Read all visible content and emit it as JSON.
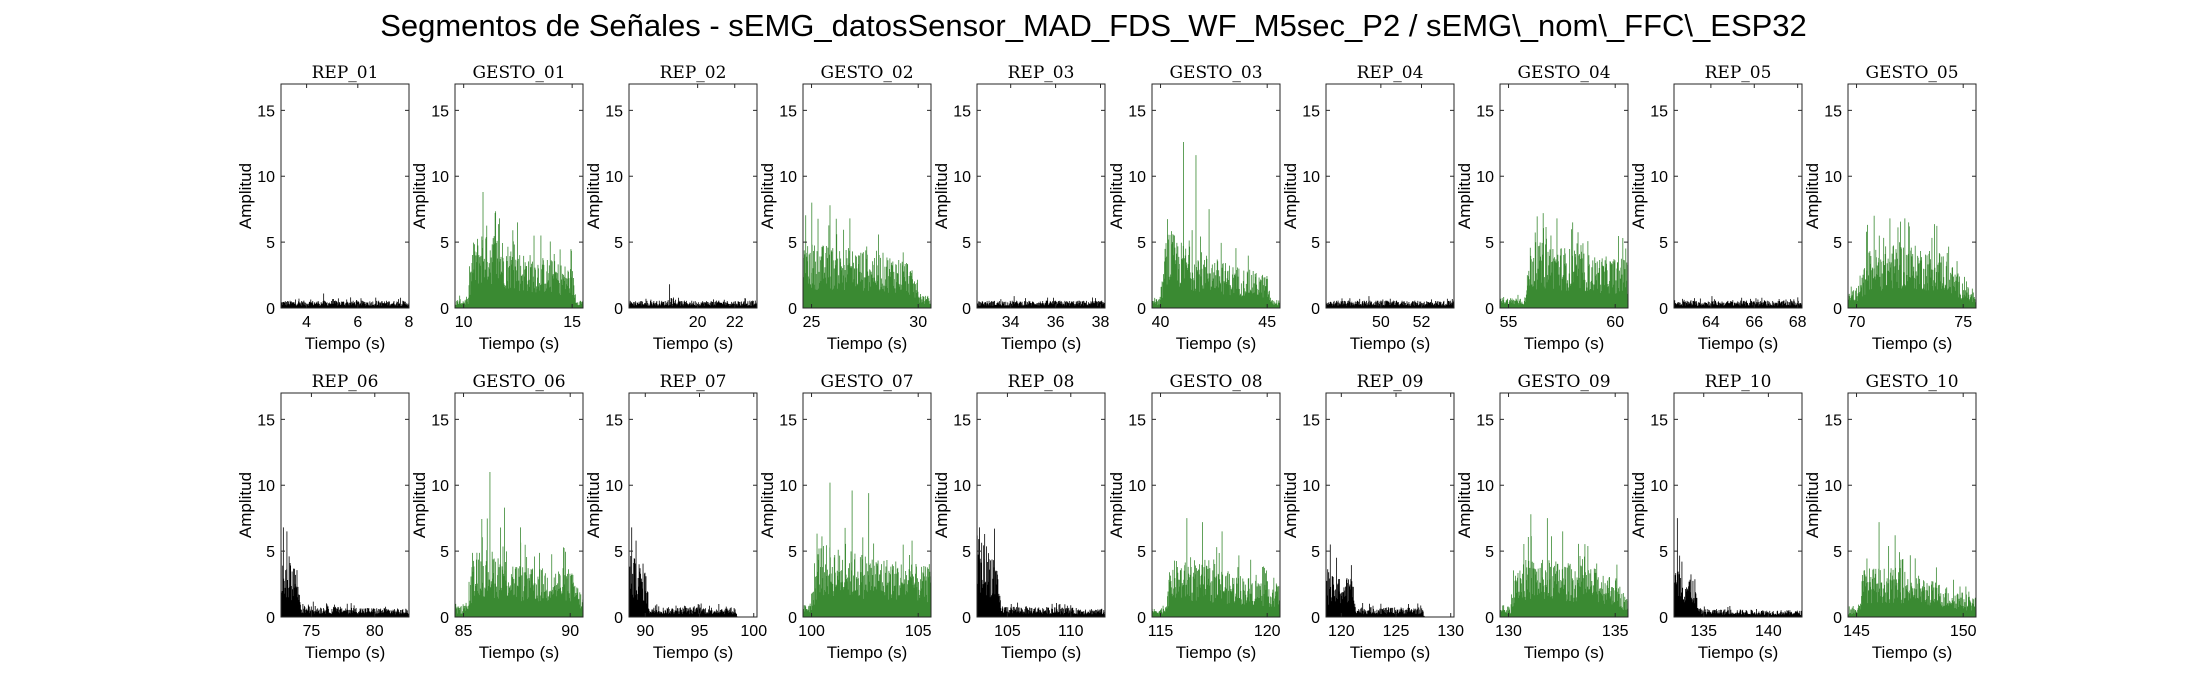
{
  "figure": {
    "title": "Segmentos de Señales - sEMG_datosSensor_MAD_FDS_WF_M5sec_P2 / sEMG\\_nom\\_FFC\\_ESP32"
  },
  "colors": {
    "rep": "#000000",
    "gesto": "#3a8a32"
  },
  "chart_data": [
    {
      "type": "bar",
      "title": "REP_01",
      "kind": "rep",
      "xlim": [
        3,
        8
      ],
      "ylim": [
        0,
        17
      ],
      "xticks": [
        4,
        6,
        8
      ],
      "yticks": [
        0,
        5,
        10,
        15
      ],
      "xlabel": "Tiempo (s)",
      "ylabel": "Amplitud",
      "profile": [
        [
          3,
          0.45
        ],
        [
          8,
          0.45
        ]
      ],
      "peaks": [
        1.1
      ]
    },
    {
      "type": "bar",
      "title": "GESTO_01",
      "kind": "gesto",
      "xlim": [
        9.6,
        15.5
      ],
      "ylim": [
        0,
        17
      ],
      "xticks": [
        10,
        15
      ],
      "yticks": [
        0,
        5,
        10,
        15
      ],
      "xlabel": "Tiempo (s)",
      "ylabel": "Amplitud",
      "profile": [
        [
          9.6,
          0.5
        ],
        [
          10.2,
          0.6
        ],
        [
          10.4,
          4.0
        ],
        [
          11,
          5.2
        ],
        [
          12.5,
          3.5
        ],
        [
          14,
          3.0
        ],
        [
          15,
          2.5
        ],
        [
          15.2,
          0.6
        ],
        [
          15.5,
          0.5
        ]
      ],
      "peaks": [
        8.8,
        6.8,
        6.5
      ]
    },
    {
      "type": "bar",
      "title": "REP_02",
      "kind": "rep",
      "xlim": [
        16.3,
        23.2
      ],
      "ylim": [
        0,
        17
      ],
      "xticks": [
        20,
        22
      ],
      "yticks": [
        0,
        5,
        10,
        15
      ],
      "xlabel": "Tiempo (s)",
      "ylabel": "Amplitud",
      "profile": [
        [
          16.3,
          0.45
        ],
        [
          23.2,
          0.45
        ]
      ],
      "peaks": [
        1.8
      ]
    },
    {
      "type": "bar",
      "title": "GESTO_02",
      "kind": "gesto",
      "xlim": [
        24.6,
        30.6
      ],
      "ylim": [
        0,
        17
      ],
      "xticks": [
        25,
        30
      ],
      "yticks": [
        0,
        5,
        10,
        15
      ],
      "xlabel": "Tiempo (s)",
      "ylabel": "Amplitud",
      "profile": [
        [
          24.6,
          4.0
        ],
        [
          26,
          3.8
        ],
        [
          28,
          3.5
        ],
        [
          29.5,
          3.0
        ],
        [
          30.1,
          1.0
        ],
        [
          30.6,
          0.5
        ]
      ],
      "peaks": [
        8.0,
        7.8,
        6.8
      ]
    },
    {
      "type": "bar",
      "title": "REP_03",
      "kind": "rep",
      "xlim": [
        32.5,
        38.2
      ],
      "ylim": [
        0,
        17
      ],
      "xticks": [
        34,
        36,
        38
      ],
      "yticks": [
        0,
        5,
        10,
        15
      ],
      "xlabel": "Tiempo (s)",
      "ylabel": "Amplitud",
      "profile": [
        [
          32.5,
          0.45
        ],
        [
          38.2,
          0.45
        ]
      ],
      "peaks": [
        0.9
      ]
    },
    {
      "type": "bar",
      "title": "GESTO_03",
      "kind": "gesto",
      "xlim": [
        39.6,
        45.6
      ],
      "ylim": [
        0,
        17
      ],
      "xticks": [
        40,
        45
      ],
      "yticks": [
        0,
        5,
        10,
        15
      ],
      "xlabel": "Tiempo (s)",
      "ylabel": "Amplitud",
      "profile": [
        [
          39.6,
          0.5
        ],
        [
          40.0,
          0.6
        ],
        [
          40.3,
          5.0
        ],
        [
          41,
          4.0
        ],
        [
          43,
          2.8
        ],
        [
          45,
          2.0
        ],
        [
          45.2,
          0.5
        ],
        [
          45.6,
          0.5
        ]
      ],
      "peaks": [
        12.6,
        11.6,
        7.5
      ]
    },
    {
      "type": "bar",
      "title": "REP_04",
      "kind": "rep",
      "xlim": [
        47.3,
        53.6
      ],
      "ylim": [
        0,
        17
      ],
      "xticks": [
        50,
        52
      ],
      "yticks": [
        0,
        5,
        10,
        15
      ],
      "xlabel": "Tiempo (s)",
      "ylabel": "Amplitud",
      "profile": [
        [
          47.3,
          0.45
        ],
        [
          53.6,
          0.45
        ]
      ],
      "peaks": [
        0.9
      ]
    },
    {
      "type": "bar",
      "title": "GESTO_04",
      "kind": "gesto",
      "xlim": [
        54.6,
        60.6
      ],
      "ylim": [
        0,
        17
      ],
      "xticks": [
        55,
        60
      ],
      "yticks": [
        0,
        5,
        10,
        15
      ],
      "xlabel": "Tiempo (s)",
      "ylabel": "Amplitud",
      "profile": [
        [
          54.6,
          0.6
        ],
        [
          55.8,
          0.7
        ],
        [
          56,
          4.0
        ],
        [
          57,
          4.0
        ],
        [
          59,
          3.2
        ],
        [
          60.6,
          3.0
        ]
      ],
      "peaks": [
        7.2,
        6.8,
        6.5
      ]
    },
    {
      "type": "bar",
      "title": "REP_05",
      "kind": "rep",
      "xlim": [
        62.3,
        68.2
      ],
      "ylim": [
        0,
        17
      ],
      "xticks": [
        64,
        66,
        68
      ],
      "yticks": [
        0,
        5,
        10,
        15
      ],
      "xlabel": "Tiempo (s)",
      "ylabel": "Amplitud",
      "profile": [
        [
          62.3,
          0.45
        ],
        [
          68.2,
          0.45
        ]
      ],
      "peaks": [
        0.9
      ]
    },
    {
      "type": "bar",
      "title": "GESTO_05",
      "kind": "gesto",
      "xlim": [
        69.6,
        75.6
      ],
      "ylim": [
        0,
        17
      ],
      "xticks": [
        70,
        75
      ],
      "yticks": [
        0,
        5,
        10,
        15
      ],
      "xlabel": "Tiempo (s)",
      "ylabel": "Amplitud",
      "profile": [
        [
          69.6,
          0.8
        ],
        [
          70.2,
          1.5
        ],
        [
          70.5,
          3.5
        ],
        [
          72,
          4.0
        ],
        [
          74,
          3.5
        ],
        [
          75.1,
          1.5
        ],
        [
          75.6,
          0.6
        ]
      ],
      "peaks": [
        7.0,
        6.8,
        6.5
      ]
    },
    {
      "type": "bar",
      "title": "REP_06",
      "kind": "rep",
      "xlim": [
        72.6,
        82.7
      ],
      "ylim": [
        0,
        17
      ],
      "xticks": [
        75,
        80
      ],
      "yticks": [
        0,
        5,
        10,
        15
      ],
      "xlabel": "Tiempo (s)",
      "ylabel": "Amplitud",
      "profile": [
        [
          72.6,
          4.0
        ],
        [
          73.8,
          3.5
        ],
        [
          74.2,
          0.7
        ],
        [
          82.7,
          0.5
        ]
      ],
      "peaks": [
        6.8,
        6.5
      ]
    },
    {
      "type": "bar",
      "title": "GESTO_06",
      "kind": "gesto",
      "xlim": [
        84.6,
        90.6
      ],
      "ylim": [
        0,
        17
      ],
      "xticks": [
        85,
        90
      ],
      "yticks": [
        0,
        5,
        10,
        15
      ],
      "xlabel": "Tiempo (s)",
      "ylabel": "Amplitud",
      "profile": [
        [
          84.6,
          0.6
        ],
        [
          85.2,
          0.8
        ],
        [
          85.5,
          4.5
        ],
        [
          86.5,
          4.0
        ],
        [
          88,
          3.0
        ],
        [
          90,
          3.0
        ],
        [
          90.6,
          1.2
        ]
      ],
      "peaks": [
        11.0,
        8.3,
        6.8
      ]
    },
    {
      "type": "bar",
      "title": "REP_07",
      "kind": "rep",
      "xlim": [
        88.5,
        100.3
      ],
      "ylim": [
        0,
        17
      ],
      "xticks": [
        90,
        95,
        100
      ],
      "yticks": [
        0,
        5,
        10,
        15
      ],
      "xlabel": "Tiempo (s)",
      "ylabel": "Amplitud",
      "profile": [
        [
          88.5,
          3.8
        ],
        [
          90,
          3.2
        ],
        [
          90.4,
          0.6
        ],
        [
          98.3,
          0.6
        ],
        [
          98.5,
          0
        ],
        [
          100.3,
          0
        ]
      ],
      "peaks": [
        6.8,
        5.8
      ]
    },
    {
      "type": "bar",
      "title": "GESTO_07",
      "kind": "gesto",
      "xlim": [
        99.6,
        105.6
      ],
      "ylim": [
        0,
        17
      ],
      "xticks": [
        100,
        105
      ],
      "yticks": [
        0,
        5,
        10,
        15
      ],
      "xlabel": "Tiempo (s)",
      "ylabel": "Amplitud",
      "profile": [
        [
          99.6,
          0.7
        ],
        [
          100,
          1.0
        ],
        [
          100.3,
          4.5
        ],
        [
          102,
          4.0
        ],
        [
          104,
          3.5
        ],
        [
          105.6,
          3.0
        ]
      ],
      "peaks": [
        10.2,
        9.6,
        9.4
      ]
    },
    {
      "type": "bar",
      "title": "REP_08",
      "kind": "rep",
      "xlim": [
        102.6,
        112.7
      ],
      "ylim": [
        0,
        17
      ],
      "xticks": [
        105,
        110
      ],
      "yticks": [
        0,
        5,
        10,
        15
      ],
      "xlabel": "Tiempo (s)",
      "ylabel": "Amplitud",
      "profile": [
        [
          102.6,
          5.0
        ],
        [
          104,
          4.0
        ],
        [
          104.5,
          0.7
        ],
        [
          112.7,
          0.5
        ]
      ],
      "peaks": [
        6.8,
        6.3
      ]
    },
    {
      "type": "bar",
      "title": "GESTO_08",
      "kind": "gesto",
      "xlim": [
        114.6,
        120.6
      ],
      "ylim": [
        0,
        17
      ],
      "xticks": [
        115,
        120
      ],
      "yticks": [
        0,
        5,
        10,
        15
      ],
      "xlabel": "Tiempo (s)",
      "ylabel": "Amplitud",
      "profile": [
        [
          114.6,
          0.5
        ],
        [
          115.2,
          0.6
        ],
        [
          115.5,
          3.5
        ],
        [
          117,
          3.2
        ],
        [
          119,
          2.5
        ],
        [
          120.6,
          2.0
        ]
      ],
      "peaks": [
        7.5,
        7.2,
        6.5
      ]
    },
    {
      "type": "bar",
      "title": "REP_09",
      "kind": "rep",
      "xlim": [
        118.6,
        130.3
      ],
      "ylim": [
        0,
        17
      ],
      "xticks": [
        120,
        125,
        130
      ],
      "yticks": [
        0,
        5,
        10,
        15
      ],
      "xlabel": "Tiempo (s)",
      "ylabel": "Amplitud",
      "profile": [
        [
          118.6,
          2.5
        ],
        [
          121,
          2.5
        ],
        [
          121.4,
          0.6
        ],
        [
          127.4,
          0.6
        ],
        [
          127.6,
          0
        ],
        [
          130.3,
          0
        ]
      ],
      "peaks": [
        5.5,
        4.5
      ]
    },
    {
      "type": "bar",
      "title": "GESTO_09",
      "kind": "gesto",
      "xlim": [
        129.6,
        135.6
      ],
      "ylim": [
        0,
        17
      ],
      "xticks": [
        130,
        135
      ],
      "yticks": [
        0,
        5,
        10,
        15
      ],
      "xlabel": "Tiempo (s)",
      "ylabel": "Amplitud",
      "profile": [
        [
          129.6,
          0.5
        ],
        [
          130.1,
          0.6
        ],
        [
          130.3,
          3.5
        ],
        [
          132,
          3.5
        ],
        [
          134,
          3.0
        ],
        [
          135,
          2.5
        ],
        [
          135.6,
          1.0
        ]
      ],
      "peaks": [
        7.8,
        7.5,
        6.5
      ]
    },
    {
      "type": "bar",
      "title": "REP_10",
      "kind": "rep",
      "xlim": [
        132.7,
        142.6
      ],
      "ylim": [
        0,
        17
      ],
      "xticks": [
        135,
        140
      ],
      "yticks": [
        0,
        5,
        10,
        15
      ],
      "xlabel": "Tiempo (s)",
      "ylabel": "Amplitud",
      "profile": [
        [
          132.7,
          3.0
        ],
        [
          134.3,
          2.5
        ],
        [
          134.6,
          0.5
        ],
        [
          142.6,
          0.4
        ]
      ],
      "peaks": [
        7.5,
        4.2
      ]
    },
    {
      "type": "bar",
      "title": "GESTO_10",
      "kind": "gesto",
      "xlim": [
        144.6,
        150.6
      ],
      "ylim": [
        0,
        17
      ],
      "xticks": [
        145,
        150
      ],
      "yticks": [
        0,
        5,
        10,
        15
      ],
      "xlabel": "Tiempo (s)",
      "ylabel": "Amplitud",
      "profile": [
        [
          144.6,
          0.5
        ],
        [
          145.1,
          0.6
        ],
        [
          145.3,
          3.0
        ],
        [
          147,
          3.0
        ],
        [
          149,
          2.0
        ],
        [
          150.6,
          1.2
        ]
      ],
      "peaks": [
        7.2,
        6.2
      ]
    }
  ]
}
